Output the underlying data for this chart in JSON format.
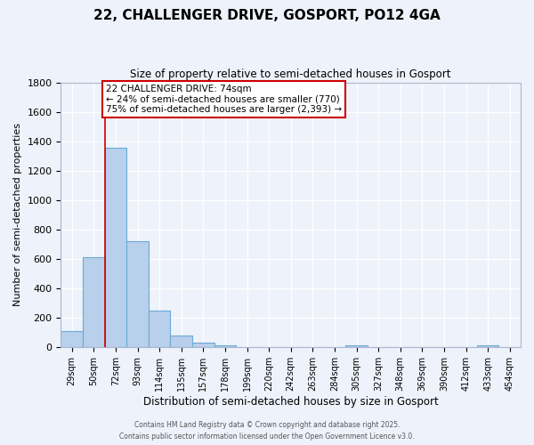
{
  "title": "22, CHALLENGER DRIVE, GOSPORT, PO12 4GA",
  "subtitle": "Size of property relative to semi-detached houses in Gosport",
  "xlabel": "Distribution of semi-detached houses by size in Gosport",
  "ylabel": "Number of semi-detached properties",
  "bar_values": [
    110,
    610,
    1360,
    720,
    250,
    80,
    30,
    10,
    0,
    0,
    0,
    0,
    0,
    10,
    0,
    0,
    0,
    0,
    0,
    10,
    0
  ],
  "categories": [
    "29sqm",
    "50sqm",
    "72sqm",
    "93sqm",
    "114sqm",
    "135sqm",
    "157sqm",
    "178sqm",
    "199sqm",
    "220sqm",
    "242sqm",
    "263sqm",
    "284sqm",
    "305sqm",
    "327sqm",
    "348sqm",
    "369sqm",
    "390sqm",
    "412sqm",
    "433sqm",
    "454sqm"
  ],
  "bar_color": "#b8d0eb",
  "bar_edge_color": "#6aaad4",
  "red_line_bin": 2,
  "annotation_title": "22 CHALLENGER DRIVE: 74sqm",
  "annotation_line1": "← 24% of semi-detached houses are smaller (770)",
  "annotation_line2": "75% of semi-detached houses are larger (2,393) →",
  "annotation_box_color": "white",
  "annotation_box_edge_color": "#cc0000",
  "ylim": [
    0,
    1800
  ],
  "yticks": [
    0,
    200,
    400,
    600,
    800,
    1000,
    1200,
    1400,
    1600,
    1800
  ],
  "footer1": "Contains HM Land Registry data © Crown copyright and database right 2025.",
  "footer2": "Contains public sector information licensed under the Open Government Licence v3.0.",
  "bg_color": "#eef2fb",
  "grid_color": "#ffffff"
}
